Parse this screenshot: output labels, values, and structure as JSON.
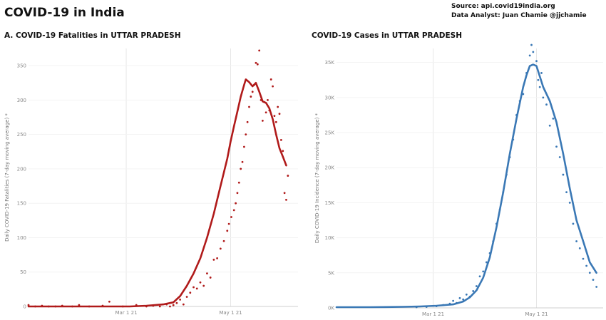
{
  "header": {
    "title": "COVID-19 in India",
    "source_line": "Source: api.covid19india.org",
    "analyst_line": "Data Analyst:  Juan Chamie @jjchamie"
  },
  "colors": {
    "fatalities": "#b01a1a",
    "cases": "#3a78b5",
    "grid": "#e6e6e6"
  },
  "chart_data": [
    {
      "type": "line",
      "title": "A. COVID-19 Fatalities in UTTAR PRADESH",
      "ylabel": "Daily COVID-19 Fatalities (7-day moving average) *",
      "xlabel": "",
      "x_range": [
        -60,
        20
      ],
      "ylim": [
        0,
        375
      ],
      "yticks": [
        0,
        50,
        100,
        150,
        200,
        250,
        300,
        350
      ],
      "ytick_labels": [
        "0",
        "50",
        "100",
        "150",
        "200",
        "250",
        "300",
        "350"
      ],
      "xticks": [
        -31,
        0
      ],
      "xtick_labels": [
        "Mar 1 21",
        "May 1 21"
      ],
      "grid": true,
      "series": [
        {
          "kind": "moving_average_line",
          "points": [
            [
              -60,
              0
            ],
            [
              -55,
              0
            ],
            [
              -50,
              0
            ],
            [
              -45,
              0
            ],
            [
              -40,
              0
            ],
            [
              -35,
              0
            ],
            [
              -30,
              0
            ],
            [
              -25,
              1
            ],
            [
              -20,
              3
            ],
            [
              -17,
              6
            ],
            [
              -15,
              15
            ],
            [
              -13,
              30
            ],
            [
              -11,
              48
            ],
            [
              -9,
              70
            ],
            [
              -7,
              100
            ],
            [
              -5,
              135
            ],
            [
              -3,
              175
            ],
            [
              -1,
              215
            ],
            [
              0,
              240
            ],
            [
              1,
              262
            ],
            [
              2,
              283
            ],
            [
              3,
              305
            ],
            [
              4,
              322
            ],
            [
              4.5,
              330
            ],
            [
              5.5,
              326
            ],
            [
              6.5,
              320
            ],
            [
              7.5,
              325
            ],
            [
              8.5,
              312
            ],
            [
              9.5,
              298
            ],
            [
              10.5,
              296
            ],
            [
              11.5,
              288
            ],
            [
              12.5,
              272
            ],
            [
              13.5,
              250
            ],
            [
              14.5,
              230
            ],
            [
              15.5,
              218
            ],
            [
              16.5,
              205
            ]
          ]
        },
        {
          "kind": "daily_points",
          "points": [
            [
              -60,
              2
            ],
            [
              -58,
              0
            ],
            [
              -56,
              1
            ],
            [
              -54,
              0
            ],
            [
              -52,
              0
            ],
            [
              -50,
              1
            ],
            [
              -47,
              0
            ],
            [
              -45,
              2
            ],
            [
              -42,
              0
            ],
            [
              -38,
              1
            ],
            [
              -36,
              7
            ],
            [
              -32,
              0
            ],
            [
              -28,
              2
            ],
            [
              -25,
              0
            ],
            [
              -23,
              1
            ],
            [
              -21,
              0
            ],
            [
              -19,
              3
            ],
            [
              -18,
              0
            ],
            [
              -17,
              2
            ],
            [
              -16,
              5
            ],
            [
              -15,
              10
            ],
            [
              -14,
              3
            ],
            [
              -13,
              14
            ],
            [
              -12,
              20
            ],
            [
              -11,
              28
            ],
            [
              -10,
              26
            ],
            [
              -9,
              35
            ],
            [
              -8,
              30
            ],
            [
              -7,
              48
            ],
            [
              -6,
              42
            ],
            [
              -5,
              68
            ],
            [
              -4,
              70
            ],
            [
              -3,
              84
            ],
            [
              -2,
              95
            ],
            [
              -1,
              110
            ],
            [
              -0.5,
              120
            ],
            [
              0.2,
              130
            ],
            [
              1,
              140
            ],
            [
              1.5,
              150
            ],
            [
              2,
              165
            ],
            [
              2.5,
              180
            ],
            [
              3,
              200
            ],
            [
              3.5,
              210
            ],
            [
              4,
              232
            ],
            [
              4.5,
              250
            ],
            [
              5,
              268
            ],
            [
              5.5,
              290
            ],
            [
              6,
              305
            ],
            [
              6.5,
              312
            ],
            [
              7,
              322
            ],
            [
              7.5,
              354
            ],
            [
              8,
              352
            ],
            [
              8.5,
              372
            ],
            [
              9,
              300
            ],
            [
              9.5,
              270
            ],
            [
              10,
              297
            ],
            [
              10.5,
              282
            ],
            [
              11,
              300
            ],
            [
              11.5,
              285
            ],
            [
              12,
              330
            ],
            [
              12.5,
              320
            ],
            [
              13,
              277
            ],
            [
              13.5,
              268
            ],
            [
              14,
              290
            ],
            [
              14.5,
              280
            ],
            [
              15,
              242
            ],
            [
              15.5,
              226
            ],
            [
              16,
              165
            ],
            [
              16.5,
              155
            ],
            [
              17,
              190
            ]
          ]
        }
      ]
    },
    {
      "type": "line",
      "title": "COVID-19 Cases in UTTAR PRADESH",
      "ylabel": "Daily COVID-19 Incidence (7-day moving average) *",
      "xlabel": "",
      "x_range": [
        -60,
        20
      ],
      "ylim": [
        0,
        37000
      ],
      "yticks": [
        0,
        5000,
        10000,
        15000,
        20000,
        25000,
        30000,
        35000
      ],
      "ytick_labels": [
        "0K",
        "5K",
        "10K",
        "15K",
        "20K",
        "25K",
        "30K",
        "35K"
      ],
      "xticks": [
        -31,
        0
      ],
      "xtick_labels": [
        "Mar 1 21",
        "May 1 21"
      ],
      "grid": true,
      "series": [
        {
          "kind": "moving_average_line",
          "points": [
            [
              -60,
              100
            ],
            [
              -55,
              100
            ],
            [
              -50,
              100
            ],
            [
              -45,
              120
            ],
            [
              -40,
              150
            ],
            [
              -35,
              200
            ],
            [
              -30,
              300
            ],
            [
              -25,
              500
            ],
            [
              -22,
              900
            ],
            [
              -20,
              1500
            ],
            [
              -18,
              2500
            ],
            [
              -16,
              4300
            ],
            [
              -14,
              7200
            ],
            [
              -12,
              11500
            ],
            [
              -10,
              16500
            ],
            [
              -8,
              22000
            ],
            [
              -6,
              27000
            ],
            [
              -4,
              31500
            ],
            [
              -3,
              33200
            ],
            [
              -2,
              34500
            ],
            [
              -1,
              34700
            ],
            [
              0,
              34500
            ],
            [
              1,
              33000
            ],
            [
              2,
              31500
            ],
            [
              4,
              29500
            ],
            [
              6,
              26500
            ],
            [
              8,
              22000
            ],
            [
              10,
              17000
            ],
            [
              12,
              12500
            ],
            [
              14,
              9500
            ],
            [
              16,
              6500
            ],
            [
              18,
              5000
            ]
          ]
        },
        {
          "kind": "daily_points",
          "points": [
            [
              -36,
              100
            ],
            [
              -33,
              150
            ],
            [
              -30,
              250
            ],
            [
              -28,
              400
            ],
            [
              -26,
              600
            ],
            [
              -25,
              1000
            ],
            [
              -24,
              700
            ],
            [
              -23,
              1400
            ],
            [
              -22,
              1200
            ],
            [
              -21,
              1900
            ],
            [
              -20,
              1600
            ],
            [
              -19,
              2400
            ],
            [
              -18,
              3100
            ],
            [
              -17,
              4500
            ],
            [
              -16,
              5200
            ],
            [
              -15,
              6500
            ],
            [
              -14,
              7800
            ],
            [
              -13,
              9500
            ],
            [
              -12,
              12000
            ],
            [
              -11,
              14000
            ],
            [
              -10,
              16500
            ],
            [
              -9,
              19000
            ],
            [
              -8,
              21500
            ],
            [
              -7,
              24000
            ],
            [
              -6,
              27500
            ],
            [
              -5,
              29500
            ],
            [
              -4,
              30500
            ],
            [
              -3,
              33500
            ],
            [
              -2,
              36000
            ],
            [
              -1.5,
              37500
            ],
            [
              -1,
              36500
            ],
            [
              0,
              35200
            ],
            [
              0.5,
              32500
            ],
            [
              1,
              31500
            ],
            [
              1.5,
              33500
            ],
            [
              2,
              30000
            ],
            [
              2.5,
              31000
            ],
            [
              3,
              29000
            ],
            [
              4,
              26000
            ],
            [
              5,
              27000
            ],
            [
              6,
              23000
            ],
            [
              7,
              21500
            ],
            [
              8,
              19000
            ],
            [
              9,
              16500
            ],
            [
              10,
              15000
            ],
            [
              11,
              12000
            ],
            [
              12,
              9500
            ],
            [
              13,
              8500
            ],
            [
              14,
              7000
            ],
            [
              15,
              6000
            ],
            [
              16,
              5000
            ],
            [
              17,
              4000
            ],
            [
              18,
              3000
            ]
          ]
        }
      ]
    }
  ]
}
